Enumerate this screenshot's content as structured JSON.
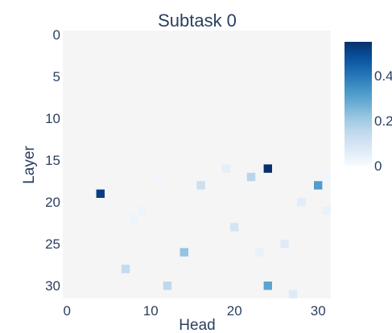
{
  "chart_data": {
    "type": "heatmap",
    "title": "Subtask 0",
    "xlabel": "Head",
    "ylabel": "Layer",
    "x_range": [
      0,
      31
    ],
    "y_range": [
      0,
      31
    ],
    "y_reversed": true,
    "x_ticks": [
      "0",
      "10",
      "20",
      "30"
    ],
    "y_ticks": [
      "0",
      "5",
      "10",
      "15",
      "20",
      "25",
      "30"
    ],
    "colorscale": [
      "#f7fbff",
      "#deebf7",
      "#c6dbef",
      "#9ecae1",
      "#6baed6",
      "#4292c6",
      "#2171b5",
      "#08519c",
      "#08306b"
    ],
    "background_color": "#f5f5f5",
    "zmin": 0,
    "zmax": 0.55,
    "colorbar_ticks": [
      {
        "value": 0,
        "label": "0"
      },
      {
        "value": 0.2,
        "label": "0.2"
      },
      {
        "value": 0.4,
        "label": "0.4"
      }
    ],
    "cells": [
      {
        "x": 24,
        "y": 16,
        "value": 0.55
      },
      {
        "x": 4,
        "y": 19,
        "value": 0.52
      },
      {
        "x": 30,
        "y": 18,
        "value": 0.32
      },
      {
        "x": 22,
        "y": 17,
        "value": 0.16
      },
      {
        "x": 16,
        "y": 18,
        "value": 0.12
      },
      {
        "x": 19,
        "y": 16,
        "value": 0.05
      },
      {
        "x": 11,
        "y": 17,
        "value": 0.02
      },
      {
        "x": 31,
        "y": 17,
        "value": 0.02
      },
      {
        "x": 28,
        "y": 20,
        "value": 0.06
      },
      {
        "x": 9,
        "y": 21,
        "value": 0.03
      },
      {
        "x": 8,
        "y": 22,
        "value": 0.03
      },
      {
        "x": 31,
        "y": 21,
        "value": 0.04
      },
      {
        "x": 20,
        "y": 23,
        "value": 0.1
      },
      {
        "x": 26,
        "y": 25,
        "value": 0.07
      },
      {
        "x": 14,
        "y": 26,
        "value": 0.22
      },
      {
        "x": 23,
        "y": 26,
        "value": 0.04
      },
      {
        "x": 7,
        "y": 28,
        "value": 0.14
      },
      {
        "x": 12,
        "y": 30,
        "value": 0.15
      },
      {
        "x": 24,
        "y": 30,
        "value": 0.3
      },
      {
        "x": 27,
        "y": 31,
        "value": 0.07
      }
    ]
  }
}
